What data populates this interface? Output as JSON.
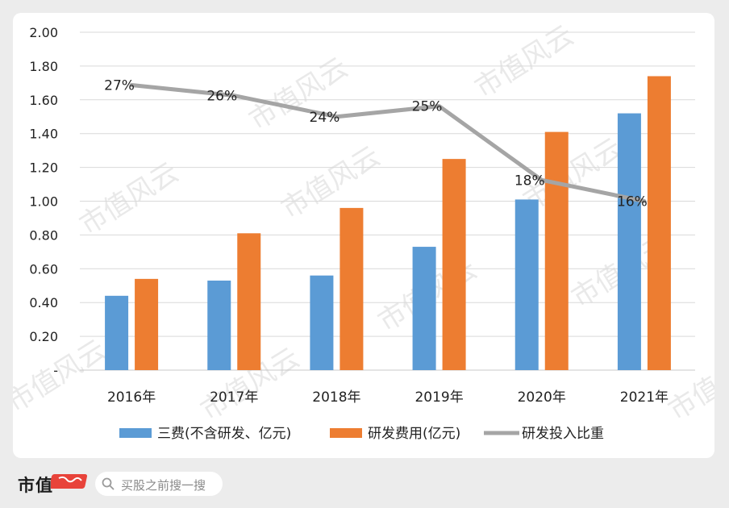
{
  "chart_data": {
    "type": "bar",
    "categories": [
      "2016年",
      "2017年",
      "2018年",
      "2019年",
      "2020年",
      "2021年"
    ],
    "series": [
      {
        "name": "三费(不含研发、亿元)",
        "type": "bar",
        "color": "#5b9bd5",
        "values": [
          0.44,
          0.53,
          0.56,
          0.73,
          1.01,
          1.52
        ]
      },
      {
        "name": "研发费用(亿元)",
        "type": "bar",
        "color": "#ed7d31",
        "values": [
          0.54,
          0.81,
          0.96,
          1.25,
          1.41,
          1.74
        ]
      },
      {
        "name": "研发投入比重",
        "type": "line",
        "color": "#a5a5a5",
        "values": [
          27,
          26,
          24,
          25,
          18,
          16
        ],
        "labels": [
          "27%",
          "26%",
          "24%",
          "25%",
          "18%",
          "16%"
        ]
      }
    ],
    "ylim": [
      0,
      2.0
    ],
    "yticks": [
      "-",
      "0.20",
      "0.40",
      "0.60",
      "0.80",
      "1.00",
      "1.20",
      "1.40",
      "1.60",
      "1.80",
      "2.00"
    ],
    "line_axis_range": [
      0,
      32
    ],
    "grid": true,
    "legend_position": "bottom"
  },
  "watermark": "市值风云",
  "footer": {
    "brand": "市值",
    "search_placeholder": "买股之前搜一搜"
  }
}
